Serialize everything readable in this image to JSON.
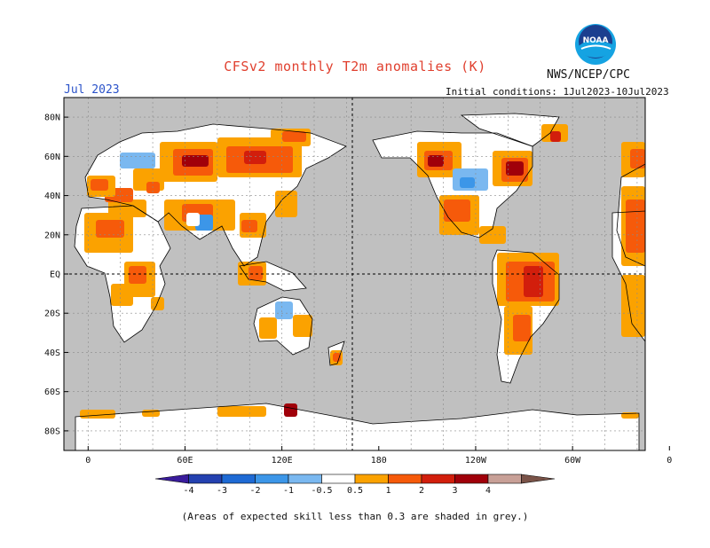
{
  "title": "CFSv2 monthly T2m anomalies (K)",
  "organization": "NWS/NCEP/CPC",
  "logo_text": "NOAA",
  "valid_month": "Jul 2023",
  "initial_conditions": "Initial conditions: 1Jul2023-10Jul2023",
  "note": "(Areas of expected skill less than 0.3 are shaded in grey.)",
  "colors": {
    "ocean_grey": "#c0c0c0",
    "land_white": "#ffffff",
    "brand_title": "#e0402f",
    "brand_month": "#2a52c9"
  },
  "map": {
    "lat_labels": [
      "80N",
      "60N",
      "40N",
      "20N",
      "EQ",
      "20S",
      "40S",
      "60S",
      "80S"
    ],
    "lon_labels": [
      "0",
      "60E",
      "120E",
      "180",
      "120W",
      "60W",
      "0"
    ],
    "grid": "dashed every 20 degrees"
  },
  "colorbar": {
    "levels": [
      "-4",
      "-3",
      "-2",
      "-1",
      "-0.5",
      "0.5",
      "1",
      "2",
      "3",
      "4"
    ],
    "bins": [
      {
        "range": "< -4",
        "color": "#3a1c9c"
      },
      {
        "range": "-4 to -3",
        "color": "#2441b0"
      },
      {
        "range": "-3 to -2",
        "color": "#1e6ad4"
      },
      {
        "range": "-2 to -1",
        "color": "#3c96e8"
      },
      {
        "range": "-1 to -0.5",
        "color": "#7ab8f0"
      },
      {
        "range": "-0.5 to 0.5",
        "color": "#ffffff"
      },
      {
        "range": "0.5 to 1",
        "color": "#fba200"
      },
      {
        "range": "1 to 2",
        "color": "#f65a0a"
      },
      {
        "range": "2 to 3",
        "color": "#d21e0c"
      },
      {
        "range": "3 to 4",
        "color": "#a0000a"
      },
      {
        "range": "4 to 5",
        "color": "#c8a097"
      },
      {
        "range": "> 5",
        "color": "#7a5348"
      }
    ]
  }
}
